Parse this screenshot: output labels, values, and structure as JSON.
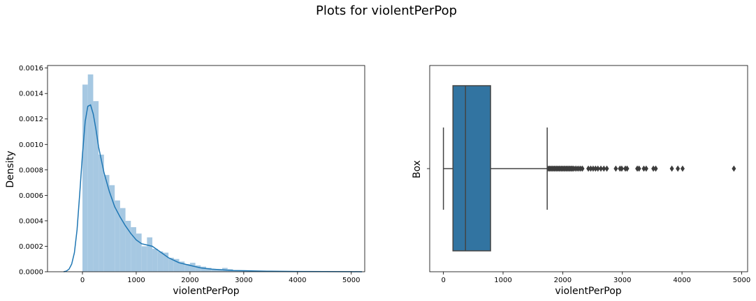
{
  "figure": {
    "title": "Plots for violentPerPop"
  },
  "chart_data": [
    {
      "type": "histogram",
      "xlabel": "violentPerPop",
      "ylabel": "Density",
      "xlim": [
        -650,
        5250
      ],
      "ylim": [
        0,
        0.00162
      ],
      "xticks": [
        "0",
        "1000",
        "2000",
        "3000",
        "4000",
        "5000"
      ],
      "xtick_values": [
        0,
        1000,
        2000,
        3000,
        4000,
        5000
      ],
      "yticks": [
        "0.0000",
        "0.0002",
        "0.0004",
        "0.0006",
        "0.0008",
        "0.0010",
        "0.0012",
        "0.0014",
        "0.0016"
      ],
      "ytick_values": [
        0,
        0.0002,
        0.0004,
        0.0006,
        0.0008,
        0.001,
        0.0012,
        0.0014,
        0.0016
      ],
      "bin_start": 0,
      "bin_width": 100,
      "bars": [
        0.00147,
        0.00155,
        0.00134,
        0.00092,
        0.00076,
        0.00068,
        0.00056,
        0.0005,
        0.0004,
        0.00035,
        0.0003,
        0.0002,
        0.00027,
        0.00018,
        0.00016,
        0.00015,
        0.00011,
        0.0001,
        8e-05,
        6e-05,
        7e-05,
        5e-05,
        4e-05,
        3e-05,
        2e-05,
        2e-05,
        3e-05,
        2e-05,
        1e-05,
        1e-05,
        8e-06,
        6e-06,
        5e-06,
        4e-06,
        3e-06,
        3e-06,
        3e-06,
        3e-06,
        2e-06,
        2e-06,
        2e-06,
        1e-06,
        1e-06,
        1e-06,
        1e-06,
        1e-06,
        1e-06,
        1e-06,
        1e-06,
        1e-06
      ],
      "kde": {
        "x": [
          -350,
          -300,
          -250,
          -200,
          -150,
          -100,
          -50,
          0,
          50,
          100,
          150,
          200,
          250,
          300,
          400,
          500,
          600,
          700,
          800,
          900,
          1000,
          1100,
          1200,
          1300,
          1400,
          1500,
          1600,
          1700,
          1800,
          1900,
          2000,
          2200,
          2400,
          2600,
          2800,
          3000,
          3200,
          3500,
          4000,
          4500,
          5000,
          5200
        ],
        "y": [
          0,
          5e-06,
          2e-05,
          6e-05,
          0.00015,
          0.00033,
          0.00062,
          0.00092,
          0.00118,
          0.0013,
          0.00131,
          0.00124,
          0.00112,
          0.00098,
          0.00078,
          0.00063,
          0.00051,
          0.00043,
          0.00036,
          0.0003,
          0.00025,
          0.00022,
          0.00021,
          0.0002,
          0.00017,
          0.00014,
          0.00011,
          9e-05,
          7e-05,
          6e-05,
          5e-05,
          3e-05,
          2e-05,
          1.5e-05,
          1e-05,
          8e-06,
          6e-06,
          4e-06,
          2e-06,
          1e-06,
          5e-07,
          0
        ]
      },
      "bar_color": "#a6c8e2",
      "line_color": "#1f77b4"
    },
    {
      "type": "box",
      "xlabel": "violentPerPop",
      "ylabel": "Box",
      "xlim": [
        -230,
        5100
      ],
      "xticks": [
        "0",
        "1000",
        "2000",
        "3000",
        "4000",
        "5000"
      ],
      "xtick_values": [
        0,
        1000,
        2000,
        3000,
        4000,
        5000
      ],
      "whisker_low": 0,
      "q1": 160,
      "median": 370,
      "q3": 790,
      "whisker_high": 1740,
      "outliers": [
        1760,
        1780,
        1800,
        1820,
        1840,
        1860,
        1880,
        1900,
        1920,
        1940,
        1960,
        1980,
        2000,
        2020,
        2040,
        2060,
        2080,
        2100,
        2120,
        2140,
        2160,
        2180,
        2210,
        2240,
        2270,
        2300,
        2330,
        2430,
        2470,
        2510,
        2550,
        2590,
        2640,
        2690,
        2740,
        2890,
        2960,
        2990,
        3050,
        3080,
        3250,
        3280,
        3360,
        3400,
        3520,
        3560,
        3830,
        3930,
        4010,
        4870
      ],
      "box_color": "#3274a1",
      "line_color": "#444444"
    }
  ]
}
